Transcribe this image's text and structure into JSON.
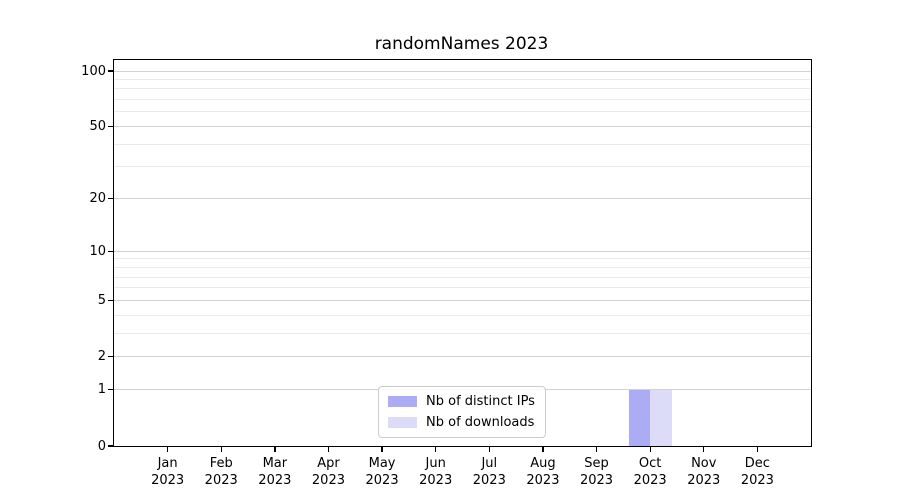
{
  "chart_data": {
    "type": "bar",
    "title": "randomNames 2023",
    "categories": [
      "Jan 2023",
      "Feb 2023",
      "Mar 2023",
      "Apr 2023",
      "May 2023",
      "Jun 2023",
      "Jul 2023",
      "Aug 2023",
      "Sep 2023",
      "Oct 2023",
      "Nov 2023",
      "Dec 2023"
    ],
    "months": [
      "Jan",
      "Feb",
      "Mar",
      "Apr",
      "May",
      "Jun",
      "Jul",
      "Aug",
      "Sep",
      "Oct",
      "Nov",
      "Dec"
    ],
    "year": "2023",
    "series": [
      {
        "name": "Nb of distinct IPs",
        "color": "#acacf5",
        "values": [
          0,
          0,
          0,
          0,
          0,
          0,
          0,
          0,
          0,
          1,
          0,
          0
        ]
      },
      {
        "name": "Nb of downloads",
        "color": "#dcdcf8",
        "values": [
          0,
          0,
          0,
          0,
          0,
          0,
          0,
          0,
          0,
          1,
          0,
          0
        ]
      }
    ],
    "xlabel": "",
    "ylabel": "",
    "yscale": "log1p",
    "ylim": [
      0,
      115
    ],
    "yticks_major": [
      0,
      1,
      2,
      5,
      10,
      20,
      50,
      100
    ],
    "yticks_minor": [
      3,
      4,
      6,
      7,
      8,
      9,
      30,
      40,
      60,
      70,
      80,
      90
    ],
    "grid": true,
    "legend_position": "lower center",
    "colors": {
      "major_grid": "#d2d2d2",
      "minor_grid": "#ebebeb",
      "spine": "#000000",
      "background": "#ffffff"
    }
  }
}
